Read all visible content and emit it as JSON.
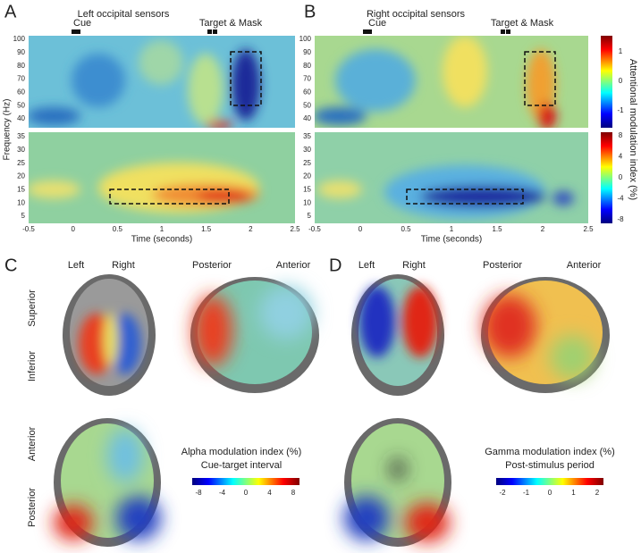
{
  "panel_a": {
    "label": "A",
    "title": "Left occipital sensors",
    "cue": "Cue",
    "target": "Target & Mask"
  },
  "panel_b": {
    "label": "B",
    "title": "Right occipital sensors",
    "cue": "Cue",
    "target": "Target & Mask"
  },
  "heatmap_axes": {
    "y_label": "Frequency (Hz)",
    "x_label": "Time (seconds)",
    "gamma_ticks": [
      100,
      90,
      80,
      70,
      60,
      50,
      40
    ],
    "alpha_ticks": [
      35,
      30,
      25,
      20,
      15,
      10,
      5
    ],
    "x_ticks": [
      -0.5,
      0,
      0.5,
      1,
      1.5,
      2,
      2.5
    ]
  },
  "colorbar": {
    "label": "Attentional modulation index (%)",
    "gamma_ticks": [
      1,
      0,
      -1
    ],
    "alpha_ticks": [
      8,
      4,
      0,
      -4,
      -8
    ]
  },
  "panel_c": {
    "label": "C",
    "left": "Left",
    "right": "Right",
    "posterior": "Posterior",
    "anterior": "Anterior",
    "superior": "Superior",
    "inferior": "Inferior",
    "axial_anterior": "Anterior",
    "axial_posterior": "Posterior",
    "colorbar_title": "Alpha modulation index (%)",
    "colorbar_subtitle": "Cue-target interval",
    "colorbar_ticks": [
      -8,
      -4,
      0,
      4,
      8
    ]
  },
  "panel_d": {
    "label": "D",
    "left": "Left",
    "right": "Right",
    "posterior": "Posterior",
    "anterior": "Anterior",
    "colorbar_title": "Gamma modulation index (%)",
    "colorbar_subtitle": "Post-stimulus period",
    "colorbar_ticks": [
      -2,
      -1,
      0,
      1,
      2
    ]
  }
}
